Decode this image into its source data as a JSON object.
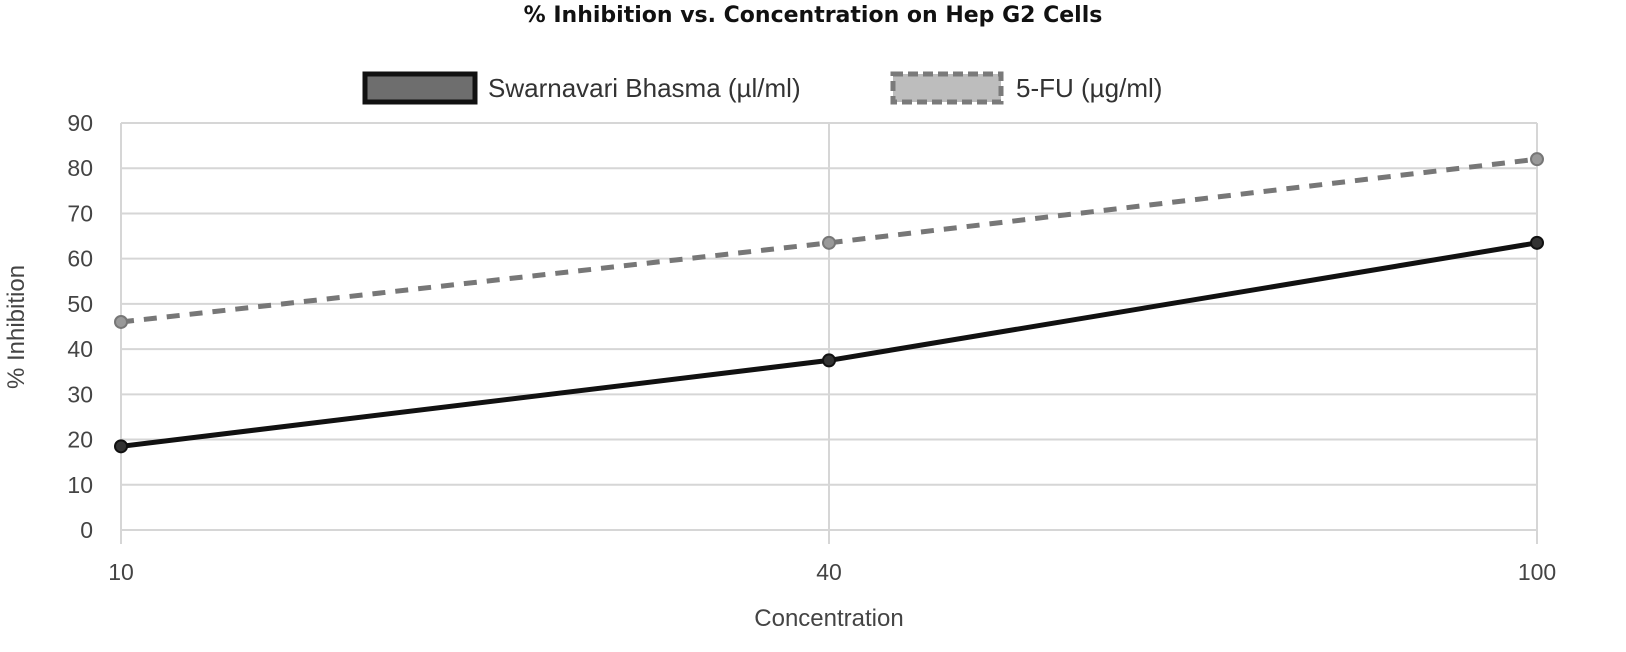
{
  "chart_data": {
    "type": "line",
    "title": "% Inhibition vs. Concentration on Hep G2 Cells",
    "xlabel": "Concentration",
    "ylabel": "% Inhibition",
    "categories": [
      "10",
      "40",
      "100"
    ],
    "yticks": [
      "0",
      "10",
      "20",
      "30",
      "40",
      "50",
      "60",
      "70",
      "80",
      "90"
    ],
    "ylim": [
      0,
      90
    ],
    "grid": true,
    "legend_position": "top",
    "series": [
      {
        "name": "Swarnavari Bhasma (µl/ml)",
        "values": [
          18.5,
          37.5,
          63.5
        ],
        "color": "#111111",
        "marker_color": "#333333",
        "style": "solid"
      },
      {
        "name": "5-FU (µg/ml)",
        "values": [
          46,
          63.5,
          82
        ],
        "color": "#777777",
        "marker_color": "#999999",
        "style": "dashed"
      }
    ]
  }
}
